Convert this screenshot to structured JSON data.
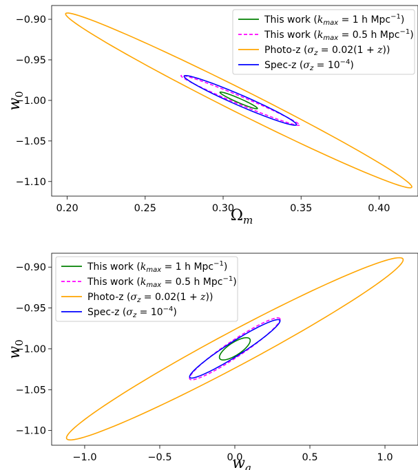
{
  "chart_data": [
    {
      "type": "line",
      "subtype": "confidence-ellipses",
      "xlabel": "Ωm",
      "ylabel": "w0",
      "xlim": [
        0.19,
        0.425
      ],
      "ylim": [
        -1.118,
        -0.883
      ],
      "xticks": [
        0.2,
        0.25,
        0.3,
        0.35,
        0.4
      ],
      "xtick_labels": [
        "0.20",
        "0.25",
        "0.30",
        "0.35",
        "0.40"
      ],
      "yticks": [
        -0.9,
        -0.95,
        -1.0,
        -1.05,
        -1.1
      ],
      "ytick_labels": [
        "−0.90",
        "−0.95",
        "−1.00",
        "−1.05",
        "−1.10"
      ],
      "legend_position": "top-right",
      "series": [
        {
          "name": "This work (kmax = 1 h Mpc−1)",
          "color": "#008000",
          "style": "solid",
          "center": [
            0.31,
            -1.0
          ],
          "x_range": [
            0.298,
            0.322
          ],
          "y_range": [
            -1.01,
            -0.99
          ],
          "minor_halfwidth": 0.0012
        },
        {
          "name": "This work (kmax = 0.5 h Mpc−1)",
          "color": "#ff00ff",
          "style": "dashed",
          "center": [
            0.311,
            -1.0
          ],
          "x_range": [
            0.273,
            0.349
          ],
          "y_range": [
            -1.031,
            -0.97
          ],
          "minor_halfwidth": 0.0022
        },
        {
          "name": "Photo-z (σz = 0.02(1 + z))",
          "color": "#ffa500",
          "style": "solid",
          "center": [
            0.31,
            -1.0
          ],
          "x_range": [
            0.199,
            0.421
          ],
          "y_range": [
            -1.107,
            -0.893
          ],
          "minor_halfwidth": 0.0065
        },
        {
          "name": "Spec-z (σz = 10−4)",
          "color": "#0000ff",
          "style": "solid",
          "center": [
            0.311,
            -1.0
          ],
          "x_range": [
            0.275,
            0.347
          ],
          "y_range": [
            -1.03,
            -0.97
          ],
          "minor_halfwidth": 0.003
        }
      ]
    },
    {
      "type": "line",
      "subtype": "confidence-ellipses",
      "xlabel": "wa",
      "ylabel": "w0",
      "xlim": [
        -1.22,
        1.22
      ],
      "ylim": [
        -1.118,
        -0.883
      ],
      "xticks": [
        -1.0,
        -0.5,
        0.0,
        0.5,
        1.0
      ],
      "xtick_labels": [
        "−1.0",
        "−0.5",
        "0.0",
        "0.5",
        "1.0"
      ],
      "yticks": [
        -0.9,
        -0.95,
        -1.0,
        -1.05,
        -1.1
      ],
      "ytick_labels": [
        "−0.90",
        "−0.95",
        "−1.00",
        "−1.05",
        "−1.10"
      ],
      "legend_position": "top-left",
      "series": [
        {
          "name": "This work (kmax = 1 h Mpc−1)",
          "color": "#008000",
          "style": "solid",
          "center": [
            0.0,
            -1.0
          ],
          "x_range": [
            -0.1,
            0.1
          ],
          "y_range": [
            -1.012,
            -0.988
          ],
          "minor_halfwidth": 0.0035
        },
        {
          "name": "This work (kmax = 0.5 h Mpc−1)",
          "color": "#ff00ff",
          "style": "dashed",
          "center": [
            0.0,
            -1.0
          ],
          "x_range": [
            -0.3,
            0.3
          ],
          "y_range": [
            -1.037,
            -0.963
          ],
          "minor_halfwidth": 0.0045
        },
        {
          "name": "Photo-z (σz = 0.02(1 + z))",
          "color": "#ffa500",
          "style": "solid",
          "center": [
            0.0,
            -1.0
          ],
          "x_range": [
            -1.12,
            1.12
          ],
          "y_range": [
            -1.11,
            -0.89
          ],
          "minor_halfwidth": 0.0095
        },
        {
          "name": "Spec-z (σz = 10−4)",
          "color": "#0000ff",
          "style": "solid",
          "center": [
            0.0,
            -1.0
          ],
          "x_range": [
            -0.3,
            0.3
          ],
          "y_range": [
            -1.035,
            -0.965
          ],
          "minor_halfwidth": 0.004
        }
      ]
    }
  ],
  "legend_labels": [
    {
      "prefix": "This work (",
      "math": "k",
      "sub": "max",
      "mid": " = 1 h Mpc",
      "sup": "−1",
      "suffix": ")"
    },
    {
      "prefix": "This work (",
      "math": "k",
      "sub": "max",
      "mid": " = 0.5 h Mpc",
      "sup": "−1",
      "suffix": ")"
    },
    {
      "prefix": "Photo-z (",
      "math": "σ",
      "sub": "z",
      "mid": " = 0.02(1 + ",
      "italic_tail": "z",
      "suffix": "))"
    },
    {
      "prefix": "Spec-z (",
      "math": "σ",
      "sub": "z",
      "mid": " = 10",
      "sup": "−4",
      "suffix": ")"
    }
  ],
  "axis_labels": {
    "top": {
      "x_main": "Ω",
      "x_sub": "m",
      "y_main": "w",
      "y_sub": "0"
    },
    "bottom": {
      "x_main": "w",
      "x_sub": "a",
      "y_main": "w",
      "y_sub": "0"
    }
  }
}
